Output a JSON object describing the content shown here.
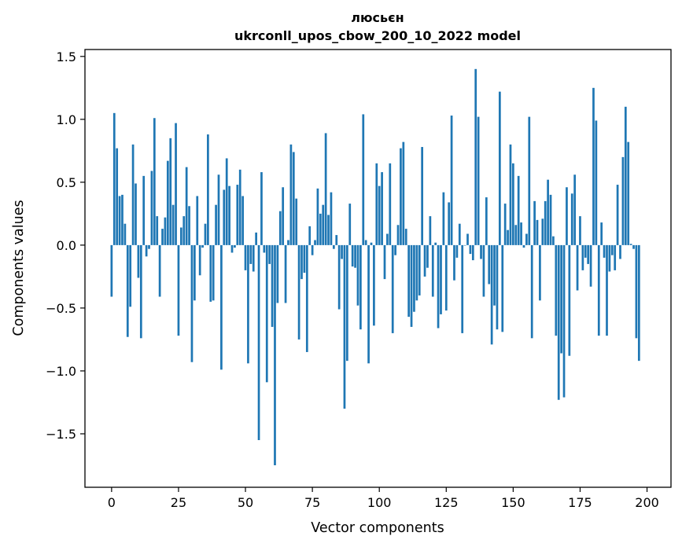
{
  "chart_data": {
    "type": "bar",
    "title": "люсьєн",
    "subtitle": "ukrconll_upos_cbow_200_10_2022 model",
    "xlabel": "Vector components",
    "ylabel": "Components values",
    "xlim": [
      -9.95,
      208.95
    ],
    "ylim": [
      -1.925,
      1.555
    ],
    "x_ticks": [
      0,
      25,
      50,
      75,
      100,
      125,
      150,
      175,
      200
    ],
    "y_ticks": [
      -1.5,
      -1.0,
      -0.5,
      0.0,
      0.5,
      1.0,
      1.5
    ],
    "y_tick_labels": [
      "−1.5",
      "−1.0",
      "−0.5",
      "0.0",
      "0.5",
      "1.0",
      "1.5"
    ],
    "bar_width": 0.8,
    "grid": false,
    "bar_color": "#1f77b4",
    "values": [
      -0.41,
      1.05,
      0.77,
      0.39,
      0.4,
      0.17,
      -0.73,
      -0.49,
      0.8,
      0.49,
      -0.26,
      -0.74,
      0.55,
      -0.09,
      -0.03,
      0.59,
      1.01,
      0.23,
      -0.41,
      0.13,
      0.22,
      0.67,
      0.85,
      0.32,
      0.97,
      -0.72,
      0.14,
      0.23,
      0.62,
      0.31,
      -0.93,
      -0.44,
      0.39,
      -0.24,
      -0.02,
      0.17,
      0.88,
      -0.45,
      -0.44,
      0.32,
      0.56,
      -0.99,
      0.44,
      0.69,
      0.47,
      -0.06,
      -0.02,
      0.48,
      0.6,
      0.39,
      -0.2,
      -0.94,
      -0.15,
      -0.21,
      0.1,
      -1.55,
      0.58,
      -0.06,
      -1.09,
      -0.15,
      -0.65,
      -1.75,
      -0.46,
      0.27,
      0.46,
      -0.46,
      0.04,
      0.8,
      0.74,
      0.37,
      -0.75,
      -0.27,
      -0.22,
      -0.85,
      0.15,
      -0.08,
      0.04,
      0.45,
      0.25,
      0.32,
      0.89,
      0.24,
      0.42,
      -0.03,
      0.08,
      -0.51,
      -0.11,
      -1.3,
      -0.92,
      0.33,
      -0.17,
      -0.18,
      -0.48,
      -0.67,
      1.04,
      0.04,
      -0.94,
      0.02,
      -0.64,
      0.65,
      0.47,
      0.58,
      -0.27,
      0.09,
      0.65,
      -0.7,
      -0.08,
      0.16,
      0.77,
      0.82,
      0.13,
      -0.57,
      -0.65,
      -0.53,
      -0.44,
      -0.4,
      0.78,
      -0.25,
      -0.18,
      0.23,
      -0.41,
      0.02,
      -0.66,
      -0.55,
      0.42,
      -0.52,
      0.34,
      1.03,
      -0.28,
      -0.1,
      0.17,
      -0.7,
      0.0,
      0.09,
      -0.07,
      -0.12,
      1.4,
      1.02,
      -0.11,
      -0.41,
      0.38,
      -0.31,
      -0.79,
      -0.48,
      -0.67,
      1.22,
      -0.69,
      0.33,
      0.12,
      0.8,
      0.65,
      0.16,
      0.55,
      0.18,
      -0.02,
      0.09,
      1.02,
      -0.74,
      0.35,
      0.2,
      -0.44,
      0.21,
      0.35,
      0.52,
      0.4,
      0.07,
      -0.72,
      -1.23,
      -0.86,
      -1.21,
      0.46,
      -0.88,
      0.41,
      0.56,
      -0.36,
      0.23,
      -0.2,
      -0.1,
      -0.15,
      -0.33,
      1.25,
      0.99,
      -0.72,
      0.18,
      -0.1,
      -0.72,
      -0.21,
      -0.08,
      -0.2,
      0.48,
      -0.11,
      0.7,
      1.1,
      0.82,
      0.01,
      -0.03,
      -0.74,
      -0.92
    ]
  }
}
